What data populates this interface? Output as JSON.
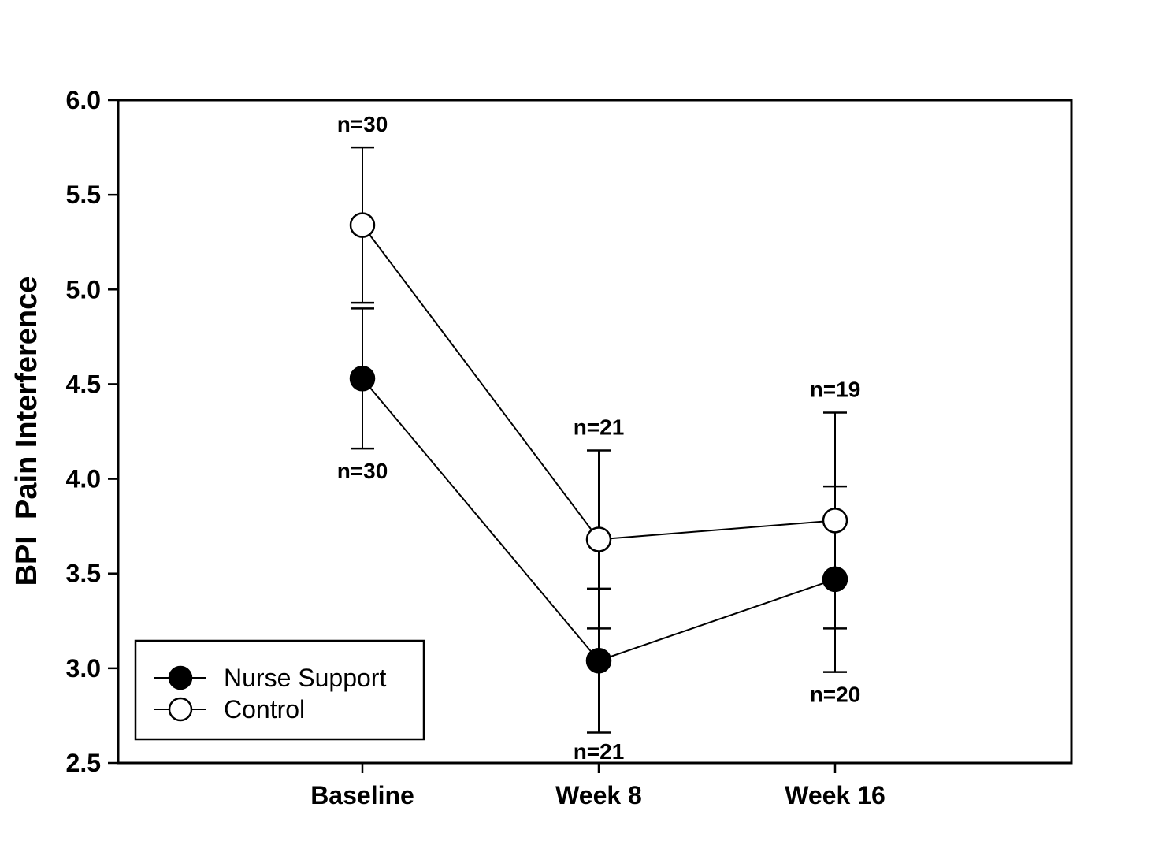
{
  "chart_data": {
    "type": "line",
    "title": "",
    "ylabel": "BPI  Pain Interference",
    "xlabel": "",
    "categories": [
      "Baseline",
      "Week 8",
      "Week 16"
    ],
    "ylim": [
      2.5,
      6.0
    ],
    "yticks": [
      2.5,
      3.0,
      3.5,
      4.0,
      4.5,
      5.0,
      5.5,
      6.0
    ],
    "ytick_decimals": 1,
    "grid": false,
    "legend_position": "bottom-left-inside",
    "series": [
      {
        "name": "Nurse Support",
        "marker": "filled-circle",
        "values": [
          4.53,
          3.04,
          3.47
        ],
        "err_low": [
          4.16,
          2.66,
          2.98
        ],
        "err_high": [
          4.9,
          3.42,
          3.96
        ],
        "n_labels": [
          "n=30",
          "n=21",
          "n=20"
        ],
        "n_label_side": "below"
      },
      {
        "name": "Control",
        "marker": "open-circle",
        "values": [
          5.34,
          3.68,
          3.78
        ],
        "err_low": [
          4.93,
          3.21,
          3.21
        ],
        "err_high": [
          5.75,
          4.15,
          4.35
        ],
        "n_labels": [
          "n=30",
          "n=21",
          "n=19"
        ],
        "n_label_side": "above"
      }
    ]
  },
  "colors": {
    "foreground": "#000000",
    "background": "#ffffff"
  }
}
